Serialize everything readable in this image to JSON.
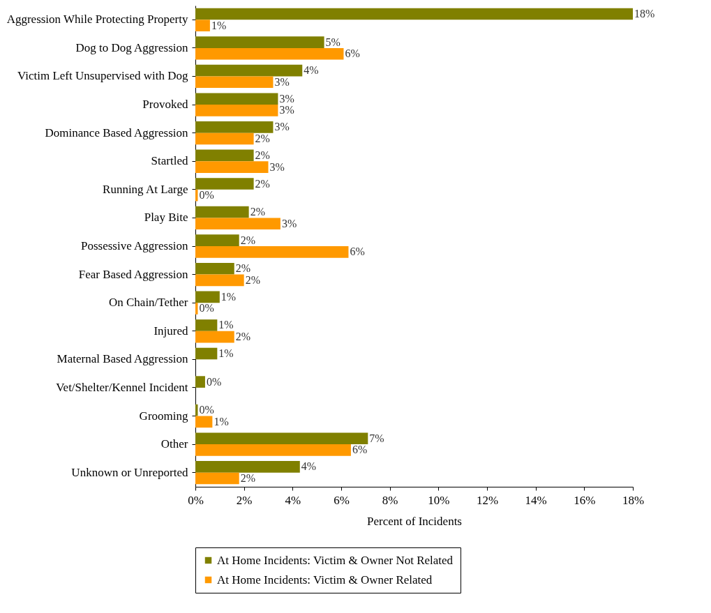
{
  "chart_data": {
    "type": "bar",
    "orientation": "horizontal",
    "xlabel": "Percent of Incidents",
    "categories": [
      "Aggression While Protecting Property",
      "Dog to Dog Aggression",
      "Victim Left Unsupervised with Dog",
      "Provoked",
      "Dominance Based Aggression",
      "Startled",
      "Running At Large",
      "Play Bite",
      "Possessive Aggression",
      "Fear Based Aggression",
      "On Chain/Tether",
      "Injured",
      "Maternal Based Aggression",
      "Vet/Shelter/Kennel Incident",
      "Grooming",
      "Other",
      "Unknown or Unreported"
    ],
    "series": [
      {
        "name": "At Home Incidents: Victim & Owner Not Related",
        "color": "#808000",
        "values": [
          18.0,
          5.3,
          4.4,
          3.4,
          3.2,
          2.4,
          2.4,
          2.2,
          1.8,
          1.6,
          1.0,
          0.9,
          0.9,
          0.4,
          0.1,
          7.1,
          4.3
        ],
        "value_labels": [
          "18%",
          "5%",
          "4%",
          "3%",
          "3%",
          "2%",
          "2%",
          "2%",
          "2%",
          "2%",
          "1%",
          "1%",
          "1%",
          "0%",
          "0%",
          "7%",
          "4%"
        ]
      },
      {
        "name": "At Home Incidents: Victim & Owner Related",
        "color": "#ff9900",
        "values": [
          0.6,
          6.1,
          3.2,
          3.4,
          2.4,
          3.0,
          0.1,
          3.5,
          6.3,
          2.0,
          0.1,
          1.6,
          null,
          null,
          0.7,
          6.4,
          1.8
        ],
        "value_labels": [
          "1%",
          "6%",
          "3%",
          "3%",
          "2%",
          "3%",
          "0%",
          "3%",
          "6%",
          "2%",
          "0%",
          "2%",
          null,
          null,
          "1%",
          "6%",
          "2%"
        ]
      }
    ],
    "xlim": [
      0,
      18
    ],
    "xticks": [
      {
        "value": 0,
        "label": "0%"
      },
      {
        "value": 2,
        "label": "2%"
      },
      {
        "value": 4,
        "label": "4%"
      },
      {
        "value": 6,
        "label": "6%"
      },
      {
        "value": 8,
        "label": "8%"
      },
      {
        "value": 10,
        "label": "10%"
      },
      {
        "value": 12,
        "label": "12%"
      },
      {
        "value": 14,
        "label": "14%"
      },
      {
        "value": 16,
        "label": "16%"
      },
      {
        "value": 18,
        "label": "18%"
      }
    ],
    "grid": false,
    "legend": "bottom"
  }
}
